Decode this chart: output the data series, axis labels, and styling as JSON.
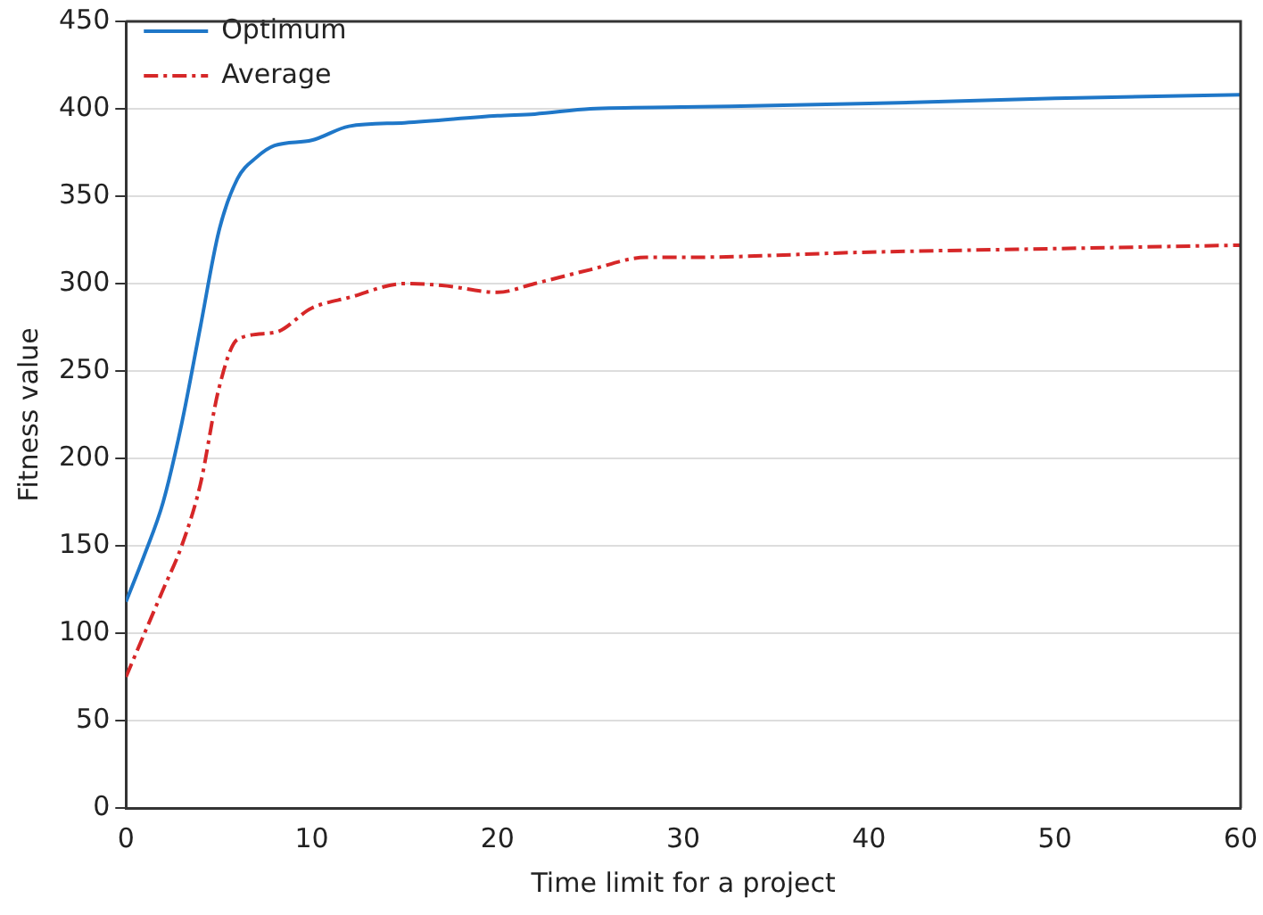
{
  "chart_data": {
    "type": "line",
    "xlabel": "Time limit for a project",
    "ylabel": "Fitness value",
    "xlim": [
      0,
      60
    ],
    "xticks": [
      0,
      10,
      20,
      30,
      40,
      50,
      60
    ],
    "ylim": [
      0,
      450
    ],
    "yticks": [
      0,
      50,
      100,
      150,
      200,
      250,
      300,
      350,
      400,
      450
    ],
    "grid": "y",
    "legend": "top left",
    "marker": "none",
    "series": [
      {
        "name": "Optimum",
        "color": "#1f77c8",
        "line_style": "solid",
        "x": [
          0,
          1,
          2,
          3,
          4,
          5,
          6,
          7,
          8,
          10,
          12,
          15,
          20,
          22,
          25,
          30,
          40,
          50,
          60
        ],
        "values": [
          118,
          145,
          175,
          220,
          275,
          330,
          360,
          372,
          379,
          382,
          390,
          392,
          396,
          397,
          400,
          401,
          403,
          406,
          408
        ]
      },
      {
        "name": "Average",
        "color": "#d62728",
        "line_style": "dashed",
        "x": [
          0,
          1,
          2,
          3,
          4,
          5,
          6,
          8,
          10,
          12,
          15,
          17,
          20,
          22,
          25,
          28,
          30,
          40,
          50,
          60
        ],
        "values": [
          75,
          100,
          125,
          150,
          185,
          240,
          268,
          272,
          286,
          292,
          300,
          299,
          295,
          300,
          308,
          315,
          315,
          318,
          320,
          322
        ]
      }
    ]
  }
}
